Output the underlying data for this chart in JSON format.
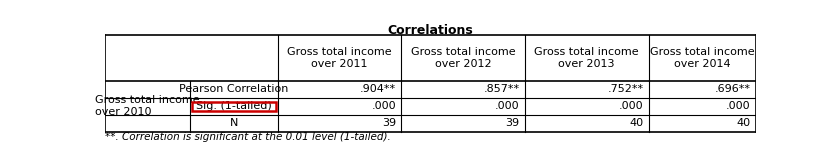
{
  "title": "Correlations",
  "col_headers": [
    "Gross total income\nover 2011",
    "Gross total income\nover 2012",
    "Gross total income\nover 2013",
    "Gross total income\nover 2014"
  ],
  "row_label_1": "Gross total income\nover 2010",
  "row_label_2": [
    "Pearson Correlation",
    "Sig. (1-tailed)",
    "N"
  ],
  "data_rows": [
    [
      ".904**",
      ".857**",
      ".752**",
      ".696**"
    ],
    [
      ".000",
      ".000",
      ".000",
      ".000"
    ],
    [
      "39",
      "39",
      "40",
      "40"
    ]
  ],
  "footnote": "**. Correlation is significant at the 0.01 level (1-tailed).",
  "highlight_row": 1,
  "highlight_color": "#cc0000",
  "background_color": "#ffffff",
  "title_fontsize": 9,
  "cell_fontsize": 8,
  "footnote_fontsize": 7.5
}
